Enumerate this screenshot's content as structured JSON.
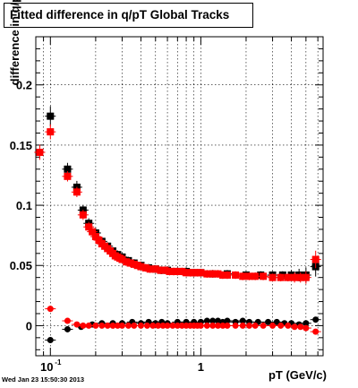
{
  "chart_data": {
    "type": "scatter",
    "title": "Fitted difference in q/pT  Global Tracks",
    "xlabel": "pT (GeV/c)",
    "ylabel": "difference in q/pT",
    "x_scale": "log",
    "xlim": [
      0.08,
      6.5
    ],
    "ylim": [
      -0.025,
      0.24
    ],
    "grid": true,
    "x_ticks": [
      {
        "value": 0.1,
        "base": "10",
        "exp": "-1"
      },
      {
        "value": 1,
        "base": "1",
        "exp": ""
      }
    ],
    "y_ticks": [
      {
        "value": 0,
        "label": "0"
      },
      {
        "value": 0.05,
        "label": "0.05"
      },
      {
        "value": 0.1,
        "label": "0.1"
      },
      {
        "value": 0.15,
        "label": "0.15"
      },
      {
        "value": 0.2,
        "label": "0.2"
      }
    ],
    "series": [
      {
        "color": "#000000",
        "marker": "square",
        "x": [
          0.1,
          0.13,
          0.15,
          0.165,
          0.18,
          0.2,
          0.22,
          0.24,
          0.26,
          0.28,
          0.3,
          0.33,
          0.36,
          0.4,
          0.45,
          0.5,
          0.55,
          0.6,
          0.7,
          0.8,
          0.9,
          1.0,
          1.2,
          1.5,
          2.0,
          2.5,
          3.0,
          3.5,
          4.0,
          4.5,
          5.0,
          5.8
        ],
        "y": [
          0.174,
          0.13,
          0.115,
          0.096,
          0.085,
          0.077,
          0.07,
          0.066,
          0.062,
          0.059,
          0.057,
          0.054,
          0.052,
          0.05,
          0.048,
          0.047,
          0.046,
          0.046,
          0.045,
          0.045,
          0.044,
          0.044,
          0.043,
          0.043,
          0.042,
          0.042,
          0.042,
          0.042,
          0.042,
          0.042,
          0.042,
          0.049
        ],
        "yerr": [
          0.006,
          0.003,
          0.003,
          0.002,
          0.002,
          0.002,
          0.001,
          0.001,
          0.001,
          0.001,
          0.001,
          0.001,
          0.001,
          0.001,
          0.001,
          0.001,
          0.001,
          0.001,
          0.001,
          0.001,
          0.001,
          0.001,
          0.001,
          0.001,
          0.001,
          0.001,
          0.001,
          0.001,
          0.002,
          0.003,
          0.004,
          0.006
        ]
      },
      {
        "color": "#ff0000",
        "marker": "square",
        "x": [
          0.085,
          0.1,
          0.13,
          0.15,
          0.165,
          0.18,
          0.19,
          0.2,
          0.21,
          0.22,
          0.23,
          0.24,
          0.25,
          0.26,
          0.27,
          0.28,
          0.29,
          0.3,
          0.32,
          0.34,
          0.36,
          0.38,
          0.4,
          0.43,
          0.46,
          0.5,
          0.54,
          0.58,
          0.62,
          0.66,
          0.7,
          0.75,
          0.8,
          0.85,
          0.9,
          0.95,
          1.0,
          1.1,
          1.2,
          1.3,
          1.4,
          1.5,
          1.7,
          1.9,
          2.1,
          2.3,
          2.6,
          3.0,
          3.4,
          3.8,
          4.2,
          4.6,
          5.0,
          5.8
        ],
        "y": [
          0.144,
          0.161,
          0.124,
          0.111,
          0.092,
          0.082,
          0.078,
          0.074,
          0.071,
          0.068,
          0.066,
          0.064,
          0.062,
          0.06,
          0.058,
          0.057,
          0.056,
          0.055,
          0.053,
          0.052,
          0.051,
          0.05,
          0.049,
          0.048,
          0.047,
          0.047,
          0.046,
          0.046,
          0.045,
          0.045,
          0.045,
          0.045,
          0.044,
          0.044,
          0.044,
          0.044,
          0.044,
          0.043,
          0.043,
          0.043,
          0.042,
          0.042,
          0.042,
          0.041,
          0.041,
          0.041,
          0.041,
          0.04,
          0.04,
          0.04,
          0.04,
          0.04,
          0.04,
          0.055
        ],
        "yerr": [
          0.004,
          0.004,
          0.002,
          0.002,
          0.002,
          0.002,
          0.001,
          0.001,
          0.001,
          0.001,
          0.001,
          0.001,
          0.001,
          0.001,
          0.001,
          0.001,
          0.001,
          0.001,
          0.001,
          0.001,
          0.001,
          0.001,
          0.001,
          0.001,
          0.001,
          0.001,
          0.001,
          0.001,
          0.001,
          0.001,
          0.001,
          0.001,
          0.001,
          0.001,
          0.001,
          0.001,
          0.001,
          0.001,
          0.001,
          0.001,
          0.001,
          0.001,
          0.001,
          0.001,
          0.001,
          0.001,
          0.001,
          0.001,
          0.001,
          0.001,
          0.002,
          0.002,
          0.003,
          0.005
        ]
      },
      {
        "color": "#000000",
        "marker": "circle",
        "x": [
          0.1,
          0.13,
          0.16,
          0.19,
          0.22,
          0.26,
          0.3,
          0.35,
          0.4,
          0.45,
          0.5,
          0.55,
          0.6,
          0.7,
          0.8,
          0.9,
          1.0,
          1.1,
          1.2,
          1.3,
          1.4,
          1.5,
          1.7,
          1.9,
          2.1,
          2.4,
          2.8,
          3.2,
          3.6,
          4.0,
          4.5,
          5.0,
          5.8
        ],
        "y": [
          -0.012,
          -0.003,
          -0.001,
          0.001,
          0.002,
          0.002,
          0.002,
          0.003,
          0.002,
          0.003,
          0.002,
          0.003,
          0.002,
          0.003,
          0.003,
          0.003,
          0.003,
          0.004,
          0.004,
          0.004,
          0.003,
          0.004,
          0.003,
          0.004,
          0.003,
          0.003,
          0.003,
          0.003,
          0.002,
          0.002,
          0.001,
          0.002,
          0.005
        ]
      },
      {
        "color": "#ff0000",
        "marker": "circle",
        "x": [
          0.085,
          0.1,
          0.13,
          0.15,
          0.165,
          0.18,
          0.2,
          0.22,
          0.24,
          0.26,
          0.28,
          0.3,
          0.33,
          0.36,
          0.4,
          0.44,
          0.48,
          0.52,
          0.56,
          0.6,
          0.65,
          0.7,
          0.75,
          0.8,
          0.85,
          0.9,
          0.95,
          1.0,
          1.1,
          1.2,
          1.3,
          1.4,
          1.5,
          1.7,
          1.9,
          2.1,
          2.3,
          2.6,
          3.0,
          3.4,
          3.8,
          4.2,
          4.6,
          5.0,
          5.8
        ],
        "y": [
          0.144,
          0.014,
          0.004,
          0.001,
          0.0,
          0.0,
          0.0,
          0.0,
          0.0,
          0.0,
          0.0,
          0.0,
          0.0,
          0.0,
          0.0,
          0.0,
          0.0,
          0.0,
          0.0,
          0.0,
          0.0,
          0.0,
          0.0,
          0.0,
          0.0,
          0.0,
          0.0,
          0.0,
          0.0,
          0.0,
          0.0,
          0.0,
          0.0,
          0.0,
          0.0,
          0.0,
          0.0,
          0.0,
          0.0,
          0.0,
          0.0,
          -0.001,
          -0.001,
          -0.002,
          -0.005
        ]
      }
    ]
  },
  "timestamp": "Wed Jan 23 15:50:30 2013"
}
